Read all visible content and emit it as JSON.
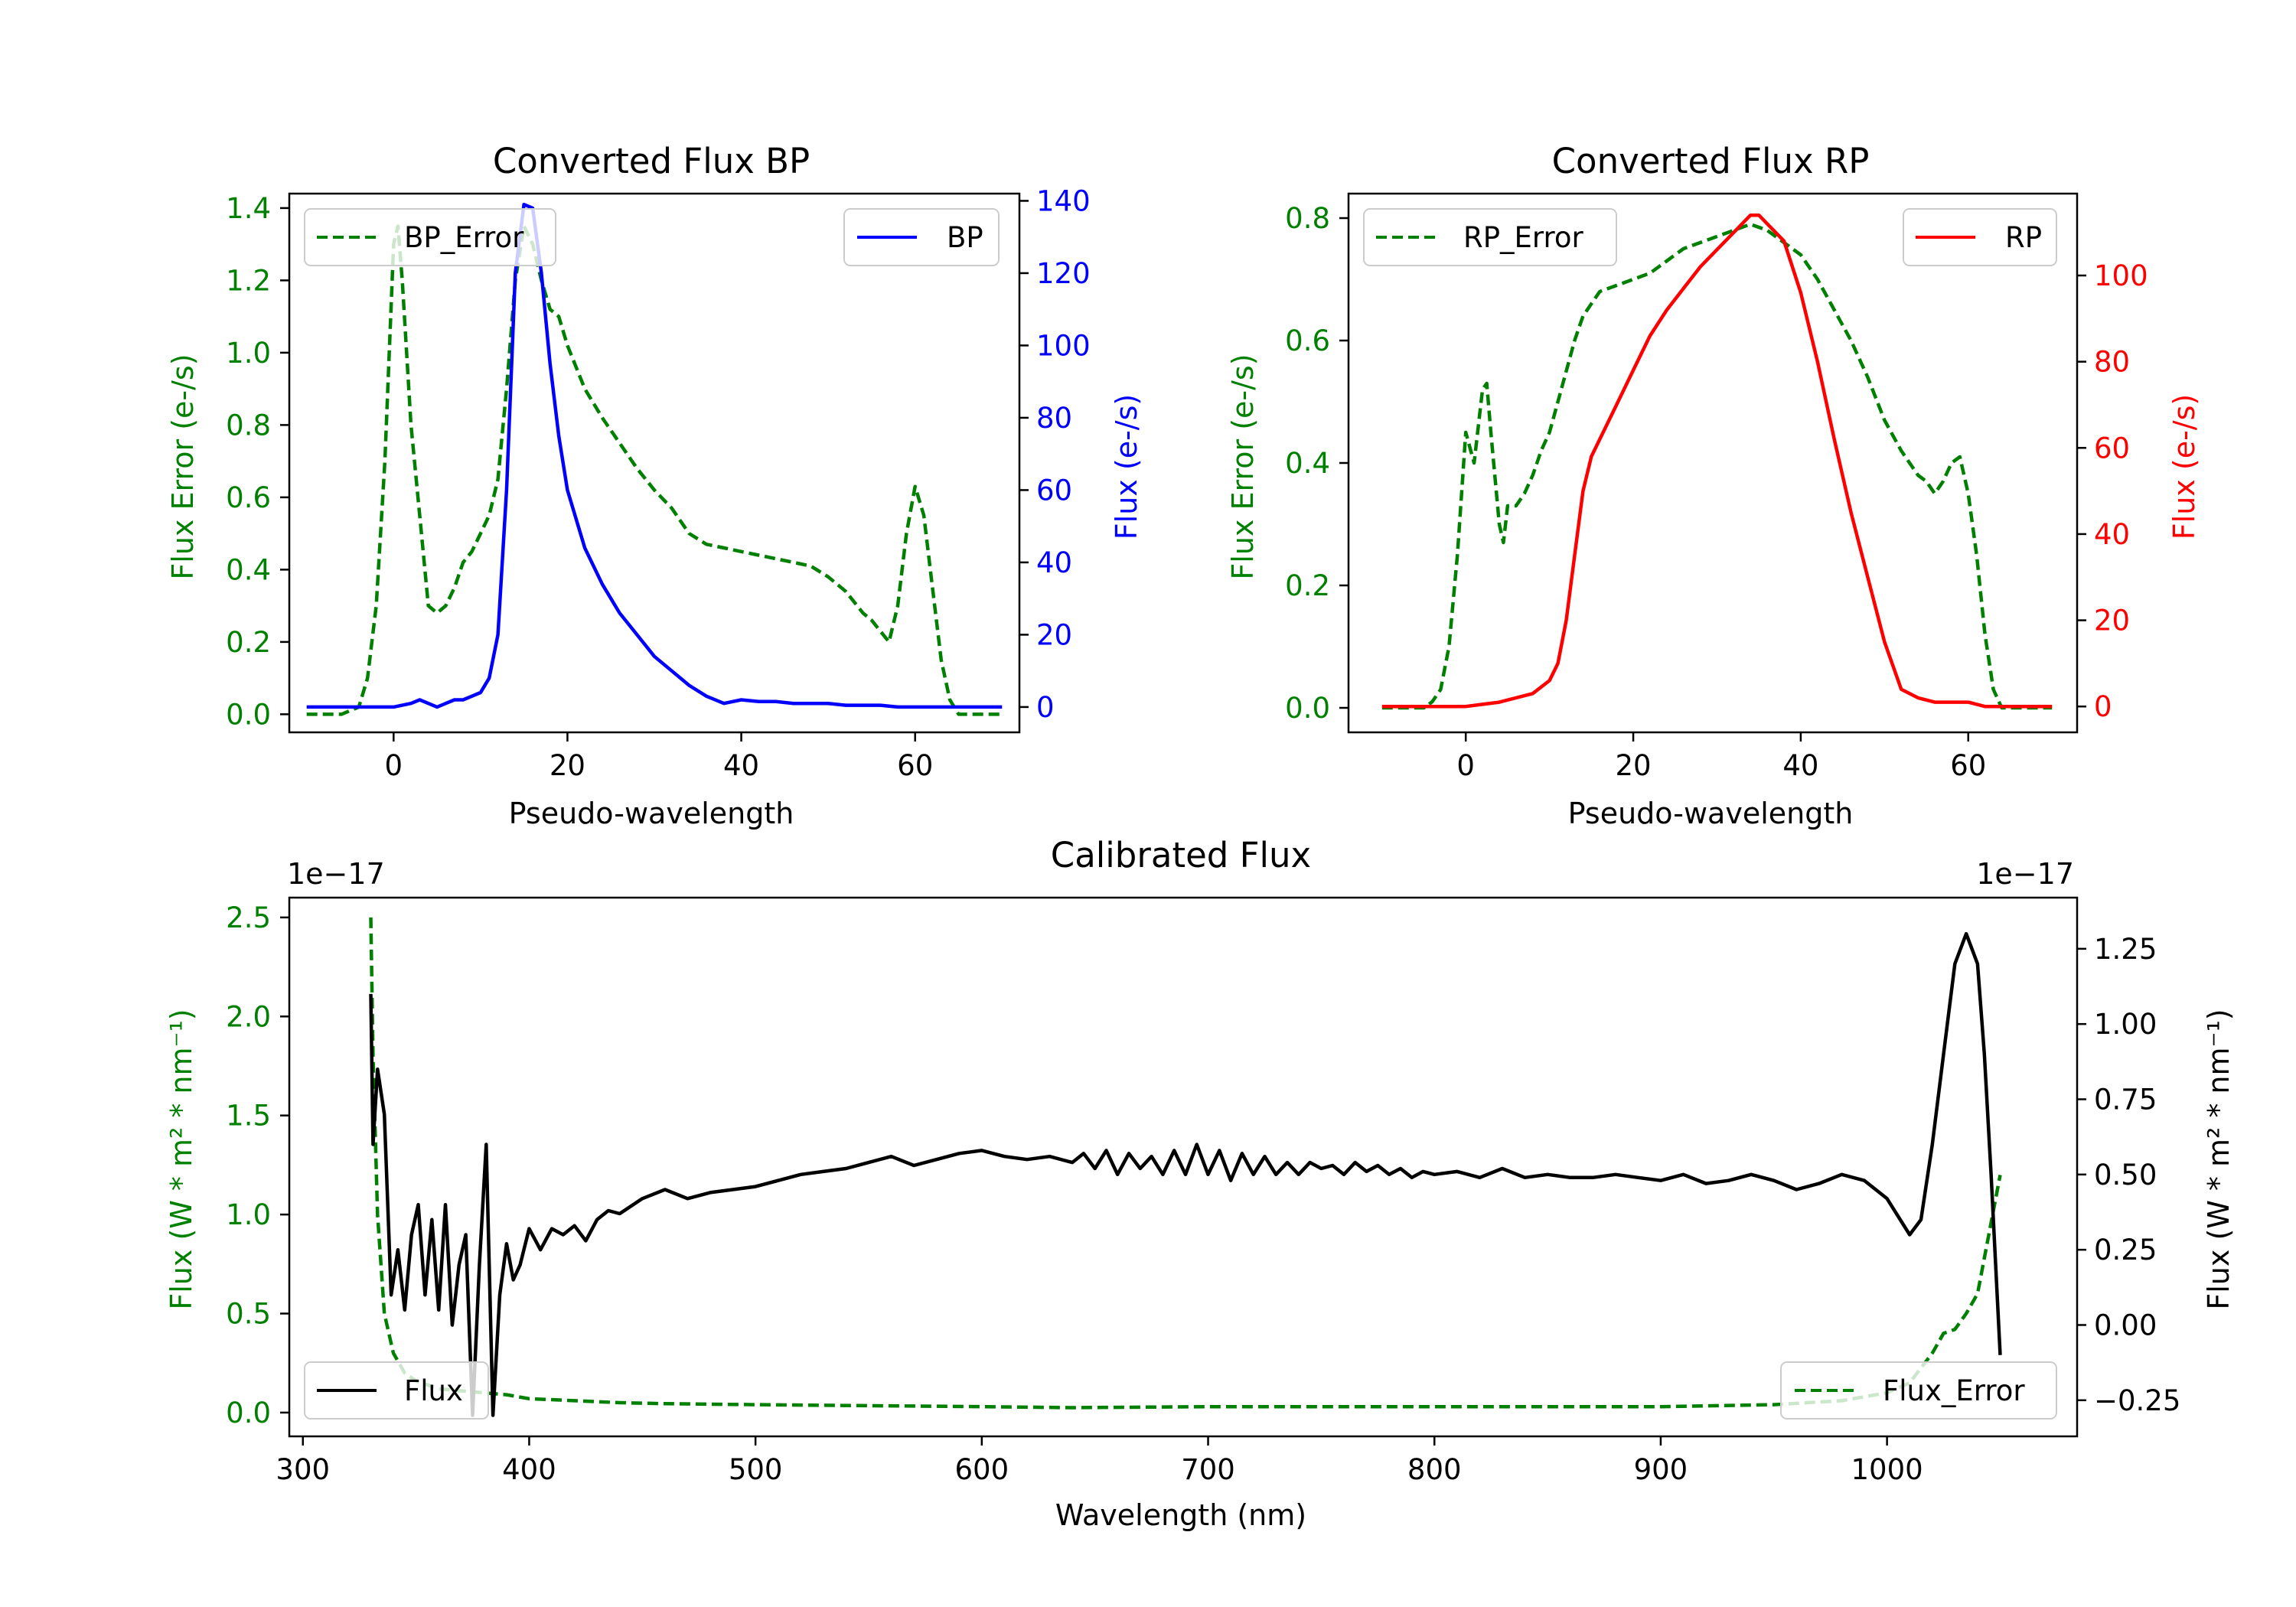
{
  "colors": {
    "error": "#008000",
    "bp": "#0000ff",
    "rp": "#ff0000",
    "flux": "#000000"
  },
  "chart_data": [
    {
      "type": "line",
      "title": "Converted Flux BP",
      "xlabel": "Pseudo-wavelength",
      "xlim": [
        -12,
        72
      ],
      "xticks": [
        0,
        20,
        40,
        60
      ],
      "ylabel_left": "Flux Error (e-/s)",
      "ylim_left": [
        -0.05,
        1.44
      ],
      "yticks_left": [
        0.0,
        0.2,
        0.4,
        0.6,
        0.8,
        1.0,
        1.2,
        1.4
      ],
      "yticklabels_left": [
        "0.0",
        "0.2",
        "0.4",
        "0.6",
        "0.8",
        "1.0",
        "1.2",
        "1.4"
      ],
      "ylabel_right": "Flux (e-/s)",
      "ylim_right": [
        -7,
        142
      ],
      "yticks_right": [
        0,
        20,
        40,
        60,
        80,
        100,
        120,
        140
      ],
      "yticklabels_right": [
        "0",
        "20",
        "40",
        "60",
        "80",
        "100",
        "120",
        "140"
      ],
      "legend_left": "top-left",
      "legend_right": "top-right",
      "series": [
        {
          "name": "BP_Error",
          "axis": "left",
          "style": "dashed",
          "color": "#008000",
          "x": [
            -10,
            -6,
            -4,
            -3,
            -2,
            -1,
            0,
            0.5,
            1,
            2,
            3,
            4,
            5,
            6,
            7,
            8,
            9,
            10,
            11,
            12,
            13,
            14,
            15,
            16,
            17,
            18,
            19,
            20,
            22,
            24,
            26,
            28,
            30,
            32,
            34,
            36,
            38,
            40,
            42,
            44,
            46,
            48,
            50,
            52,
            54,
            55,
            56,
            57,
            58,
            59,
            60,
            61,
            62,
            63,
            64,
            65,
            66,
            68,
            70
          ],
          "y": [
            0.0,
            0.0,
            0.02,
            0.1,
            0.3,
            0.7,
            1.3,
            1.35,
            1.2,
            0.8,
            0.55,
            0.3,
            0.28,
            0.3,
            0.35,
            0.42,
            0.45,
            0.5,
            0.55,
            0.65,
            0.9,
            1.2,
            1.35,
            1.3,
            1.2,
            1.12,
            1.1,
            1.02,
            0.9,
            0.82,
            0.75,
            0.68,
            0.62,
            0.57,
            0.5,
            0.47,
            0.46,
            0.45,
            0.44,
            0.43,
            0.42,
            0.41,
            0.38,
            0.34,
            0.28,
            0.26,
            0.23,
            0.2,
            0.3,
            0.5,
            0.63,
            0.55,
            0.35,
            0.15,
            0.04,
            0.0,
            0.0,
            0.0,
            0.0
          ]
        },
        {
          "name": "BP",
          "axis": "right",
          "style": "solid",
          "color": "#0000ff",
          "x": [
            -10,
            -5,
            -2,
            0,
            1,
            2,
            3,
            4,
            5,
            6,
            7,
            8,
            9,
            10,
            11,
            12,
            13,
            14,
            15,
            16,
            17,
            18,
            19,
            20,
            22,
            24,
            26,
            28,
            30,
            32,
            34,
            36,
            38,
            40,
            42,
            44,
            46,
            48,
            50,
            52,
            54,
            56,
            58,
            60,
            62,
            64,
            66,
            68,
            70
          ],
          "y": [
            0,
            0,
            0,
            0,
            0.5,
            1,
            2,
            1,
            0,
            1,
            2,
            2,
            3,
            4,
            8,
            20,
            60,
            120,
            139,
            138,
            120,
            95,
            75,
            60,
            44,
            34,
            26,
            20,
            14,
            10,
            6,
            3,
            1,
            2,
            1.5,
            1.5,
            1,
            1,
            1,
            0.5,
            0.5,
            0.5,
            0,
            0,
            0,
            0,
            0,
            0,
            0
          ]
        }
      ]
    },
    {
      "type": "line",
      "title": "Converted Flux RP",
      "xlabel": "Pseudo-wavelength",
      "xlim": [
        -14,
        73
      ],
      "xticks": [
        0,
        20,
        40,
        60
      ],
      "ylabel_left": "Flux Error (e-/s)",
      "ylim_left": [
        -0.04,
        0.84
      ],
      "yticks_left": [
        0.0,
        0.2,
        0.4,
        0.6,
        0.8
      ],
      "yticklabels_left": [
        "0.0",
        "0.2",
        "0.4",
        "0.6",
        "0.8"
      ],
      "ylabel_right": "Flux (e-/s)",
      "ylim_right": [
        -6,
        119
      ],
      "yticks_right": [
        0,
        20,
        40,
        60,
        80,
        100
      ],
      "yticklabels_right": [
        "0",
        "20",
        "40",
        "60",
        "80",
        "100"
      ],
      "legend_left": "top-left",
      "legend_right": "top-right",
      "series": [
        {
          "name": "RP_Error",
          "axis": "left",
          "style": "dashed",
          "color": "#008000",
          "x": [
            -10,
            -5,
            -4,
            -3,
            -2,
            -1,
            0,
            1,
            2,
            2.5,
            3,
            4,
            4.5,
            5,
            6,
            7,
            8,
            9,
            10,
            11,
            12,
            13,
            14,
            15,
            16,
            18,
            20,
            22,
            24,
            26,
            28,
            30,
            32,
            34,
            36,
            38,
            40,
            42,
            44,
            46,
            48,
            50,
            52,
            54,
            55,
            56,
            57,
            58,
            59,
            60,
            61,
            62,
            63,
            64,
            65,
            66,
            68,
            70
          ],
          "y": [
            0,
            0,
            0.01,
            0.03,
            0.1,
            0.25,
            0.45,
            0.4,
            0.52,
            0.53,
            0.45,
            0.3,
            0.27,
            0.33,
            0.33,
            0.35,
            0.38,
            0.42,
            0.45,
            0.5,
            0.55,
            0.6,
            0.64,
            0.66,
            0.68,
            0.69,
            0.7,
            0.71,
            0.73,
            0.75,
            0.76,
            0.77,
            0.78,
            0.79,
            0.78,
            0.76,
            0.74,
            0.7,
            0.65,
            0.6,
            0.54,
            0.47,
            0.42,
            0.38,
            0.37,
            0.35,
            0.37,
            0.4,
            0.41,
            0.35,
            0.25,
            0.12,
            0.03,
            0.0,
            0.0,
            0.0,
            0.0,
            0.0
          ]
        },
        {
          "name": "RP",
          "axis": "right",
          "style": "solid",
          "color": "#ff0000",
          "x": [
            -10,
            -5,
            0,
            2,
            4,
            6,
            8,
            10,
            11,
            12,
            13,
            14,
            15,
            16,
            18,
            20,
            22,
            24,
            26,
            28,
            30,
            32,
            34,
            35,
            36,
            38,
            40,
            42,
            44,
            46,
            48,
            50,
            52,
            54,
            56,
            58,
            60,
            62,
            64,
            66,
            68,
            70
          ],
          "y": [
            0,
            0,
            0,
            0.5,
            1,
            2,
            3,
            6,
            10,
            20,
            35,
            50,
            58,
            62,
            70,
            78,
            86,
            92,
            97,
            102,
            106,
            110,
            114,
            114,
            112,
            108,
            96,
            80,
            62,
            45,
            30,
            15,
            4,
            2,
            1,
            1,
            1,
            0,
            0,
            0,
            0,
            0
          ]
        }
      ]
    },
    {
      "type": "line",
      "title": "Calibrated Flux",
      "xlabel": "Wavelength (nm)",
      "xlim": [
        294,
        1084
      ],
      "xticks": [
        300,
        400,
        500,
        600,
        700,
        800,
        900,
        1000
      ],
      "ylabel_left": "Flux (W * m² * nm⁻¹)",
      "ylim_left": [
        -0.12,
        2.6
      ],
      "yticks_left": [
        0.0,
        0.5,
        1.0,
        1.5,
        2.0,
        2.5
      ],
      "yticklabels_left": [
        "0.0",
        "0.5",
        "1.0",
        "1.5",
        "2.0",
        "2.5"
      ],
      "offset_left": "1e−17",
      "ylabel_right": "Flux (W * m² * nm⁻¹)",
      "ylim_right": [
        -0.37,
        1.42
      ],
      "yticks_right": [
        -0.25,
        0.0,
        0.25,
        0.5,
        0.75,
        1.0,
        1.25
      ],
      "yticklabels_right": [
        "−0.25",
        "0.00",
        "0.25",
        "0.50",
        "0.75",
        "1.00",
        "1.25"
      ],
      "offset_right": "1e−17",
      "legend_left": "bottom-left",
      "legend_right": "bottom-right",
      "series": [
        {
          "name": "Flux_Error",
          "axis": "left",
          "style": "dashed",
          "color": "#008000",
          "x": [
            330,
            331,
            333,
            336,
            340,
            345,
            350,
            360,
            370,
            380,
            390,
            400,
            420,
            440,
            460,
            500,
            550,
            600,
            640,
            700,
            800,
            900,
            950,
            980,
            1000,
            1010,
            1020,
            1025,
            1030,
            1035,
            1040,
            1045,
            1050
          ],
          "y": [
            2.5,
            1.8,
            1.0,
            0.5,
            0.3,
            0.2,
            0.16,
            0.12,
            0.11,
            0.1,
            0.09,
            0.07,
            0.06,
            0.05,
            0.045,
            0.04,
            0.035,
            0.03,
            0.025,
            0.03,
            0.03,
            0.03,
            0.04,
            0.06,
            0.1,
            0.15,
            0.3,
            0.4,
            0.42,
            0.5,
            0.6,
            0.9,
            1.2
          ]
        },
        {
          "name": "Flux",
          "axis": "right",
          "style": "solid",
          "color": "#000000",
          "x": [
            330,
            331,
            333,
            336,
            339,
            342,
            345,
            348,
            351,
            354,
            357,
            360,
            363,
            366,
            369,
            372,
            375,
            378,
            381,
            384,
            387,
            390,
            393,
            396,
            400,
            405,
            410,
            415,
            420,
            425,
            430,
            435,
            440,
            450,
            460,
            470,
            480,
            490,
            500,
            510,
            520,
            530,
            540,
            550,
            560,
            570,
            580,
            590,
            600,
            605,
            610,
            620,
            630,
            640,
            645,
            650,
            655,
            660,
            665,
            670,
            675,
            680,
            685,
            690,
            695,
            700,
            705,
            710,
            715,
            720,
            725,
            730,
            735,
            740,
            745,
            750,
            755,
            760,
            765,
            770,
            775,
            780,
            785,
            790,
            795,
            800,
            810,
            820,
            830,
            840,
            850,
            860,
            870,
            880,
            890,
            900,
            910,
            920,
            930,
            940,
            950,
            960,
            970,
            980,
            990,
            1000,
            1010,
            1015,
            1020,
            1025,
            1030,
            1035,
            1040,
            1043,
            1046,
            1050
          ],
          "y": [
            1.1,
            0.6,
            0.85,
            0.7,
            0.1,
            0.25,
            0.05,
            0.3,
            0.4,
            0.1,
            0.35,
            0.05,
            0.4,
            0.0,
            0.2,
            0.3,
            -0.3,
            0.2,
            0.6,
            -0.3,
            0.1,
            0.27,
            0.15,
            0.2,
            0.32,
            0.25,
            0.32,
            0.3,
            0.33,
            0.28,
            0.35,
            0.38,
            0.37,
            0.42,
            0.45,
            0.42,
            0.44,
            0.45,
            0.46,
            0.48,
            0.5,
            0.51,
            0.52,
            0.54,
            0.56,
            0.53,
            0.55,
            0.57,
            0.58,
            0.57,
            0.56,
            0.55,
            0.56,
            0.54,
            0.57,
            0.52,
            0.58,
            0.5,
            0.57,
            0.52,
            0.56,
            0.5,
            0.58,
            0.5,
            0.6,
            0.5,
            0.58,
            0.48,
            0.57,
            0.5,
            0.56,
            0.5,
            0.54,
            0.5,
            0.54,
            0.52,
            0.53,
            0.5,
            0.54,
            0.51,
            0.53,
            0.5,
            0.52,
            0.49,
            0.51,
            0.5,
            0.51,
            0.49,
            0.52,
            0.49,
            0.5,
            0.49,
            0.49,
            0.5,
            0.49,
            0.48,
            0.5,
            0.47,
            0.48,
            0.5,
            0.48,
            0.45,
            0.47,
            0.5,
            0.48,
            0.42,
            0.3,
            0.35,
            0.6,
            0.9,
            1.2,
            1.3,
            1.2,
            0.9,
            0.5,
            -0.1
          ]
        }
      ]
    }
  ]
}
